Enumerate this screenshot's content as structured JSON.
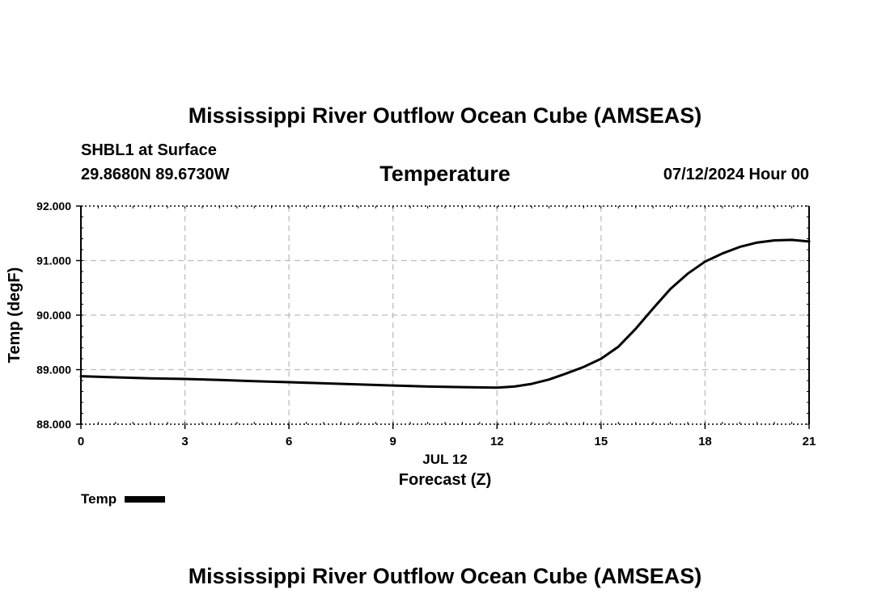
{
  "header": {
    "title": "Mississippi River Outflow Ocean Cube (AMSEAS)",
    "station": "SHBL1 at Surface",
    "coords": "29.8680N  89.6730W",
    "variable": "Temperature",
    "datetime": "07/12/2024 Hour 00"
  },
  "footer": {
    "title": "Mississippi River Outflow Ocean Cube (AMSEAS)"
  },
  "legend": {
    "label": "Temp"
  },
  "chart_data": {
    "type": "line",
    "title": "Temperature",
    "xlabel": "Forecast (Z)",
    "xsublabel": "JUL 12",
    "ylabel": "Temp (degF)",
    "xlim": [
      0,
      21
    ],
    "ylim": [
      88,
      92
    ],
    "xticks": [
      0,
      3,
      6,
      9,
      12,
      15,
      18,
      21
    ],
    "xtick_labels": [
      "0",
      "3",
      "6",
      "9",
      "12",
      "15",
      "18",
      "21"
    ],
    "yticks": [
      88,
      89,
      90,
      91,
      92
    ],
    "ytick_labels": [
      "88.000",
      "89.000",
      "90.000",
      "91.000",
      "92.000"
    ],
    "grid": true,
    "series": [
      {
        "name": "Temp",
        "x": [
          0,
          1,
          2,
          3,
          4,
          5,
          6,
          7,
          8,
          9,
          10,
          11,
          12,
          12.5,
          13,
          13.5,
          14,
          14.5,
          15,
          15.5,
          16,
          16.5,
          17,
          17.5,
          18,
          18.5,
          19,
          19.5,
          20,
          20.5,
          21
        ],
        "y": [
          88.88,
          88.86,
          88.84,
          88.83,
          88.81,
          88.79,
          88.77,
          88.75,
          88.73,
          88.71,
          88.69,
          88.68,
          88.67,
          88.69,
          88.74,
          88.82,
          88.93,
          89.05,
          89.2,
          89.42,
          89.75,
          90.12,
          90.48,
          90.76,
          90.98,
          91.13,
          91.25,
          91.33,
          91.37,
          91.38,
          91.35
        ]
      }
    ]
  }
}
